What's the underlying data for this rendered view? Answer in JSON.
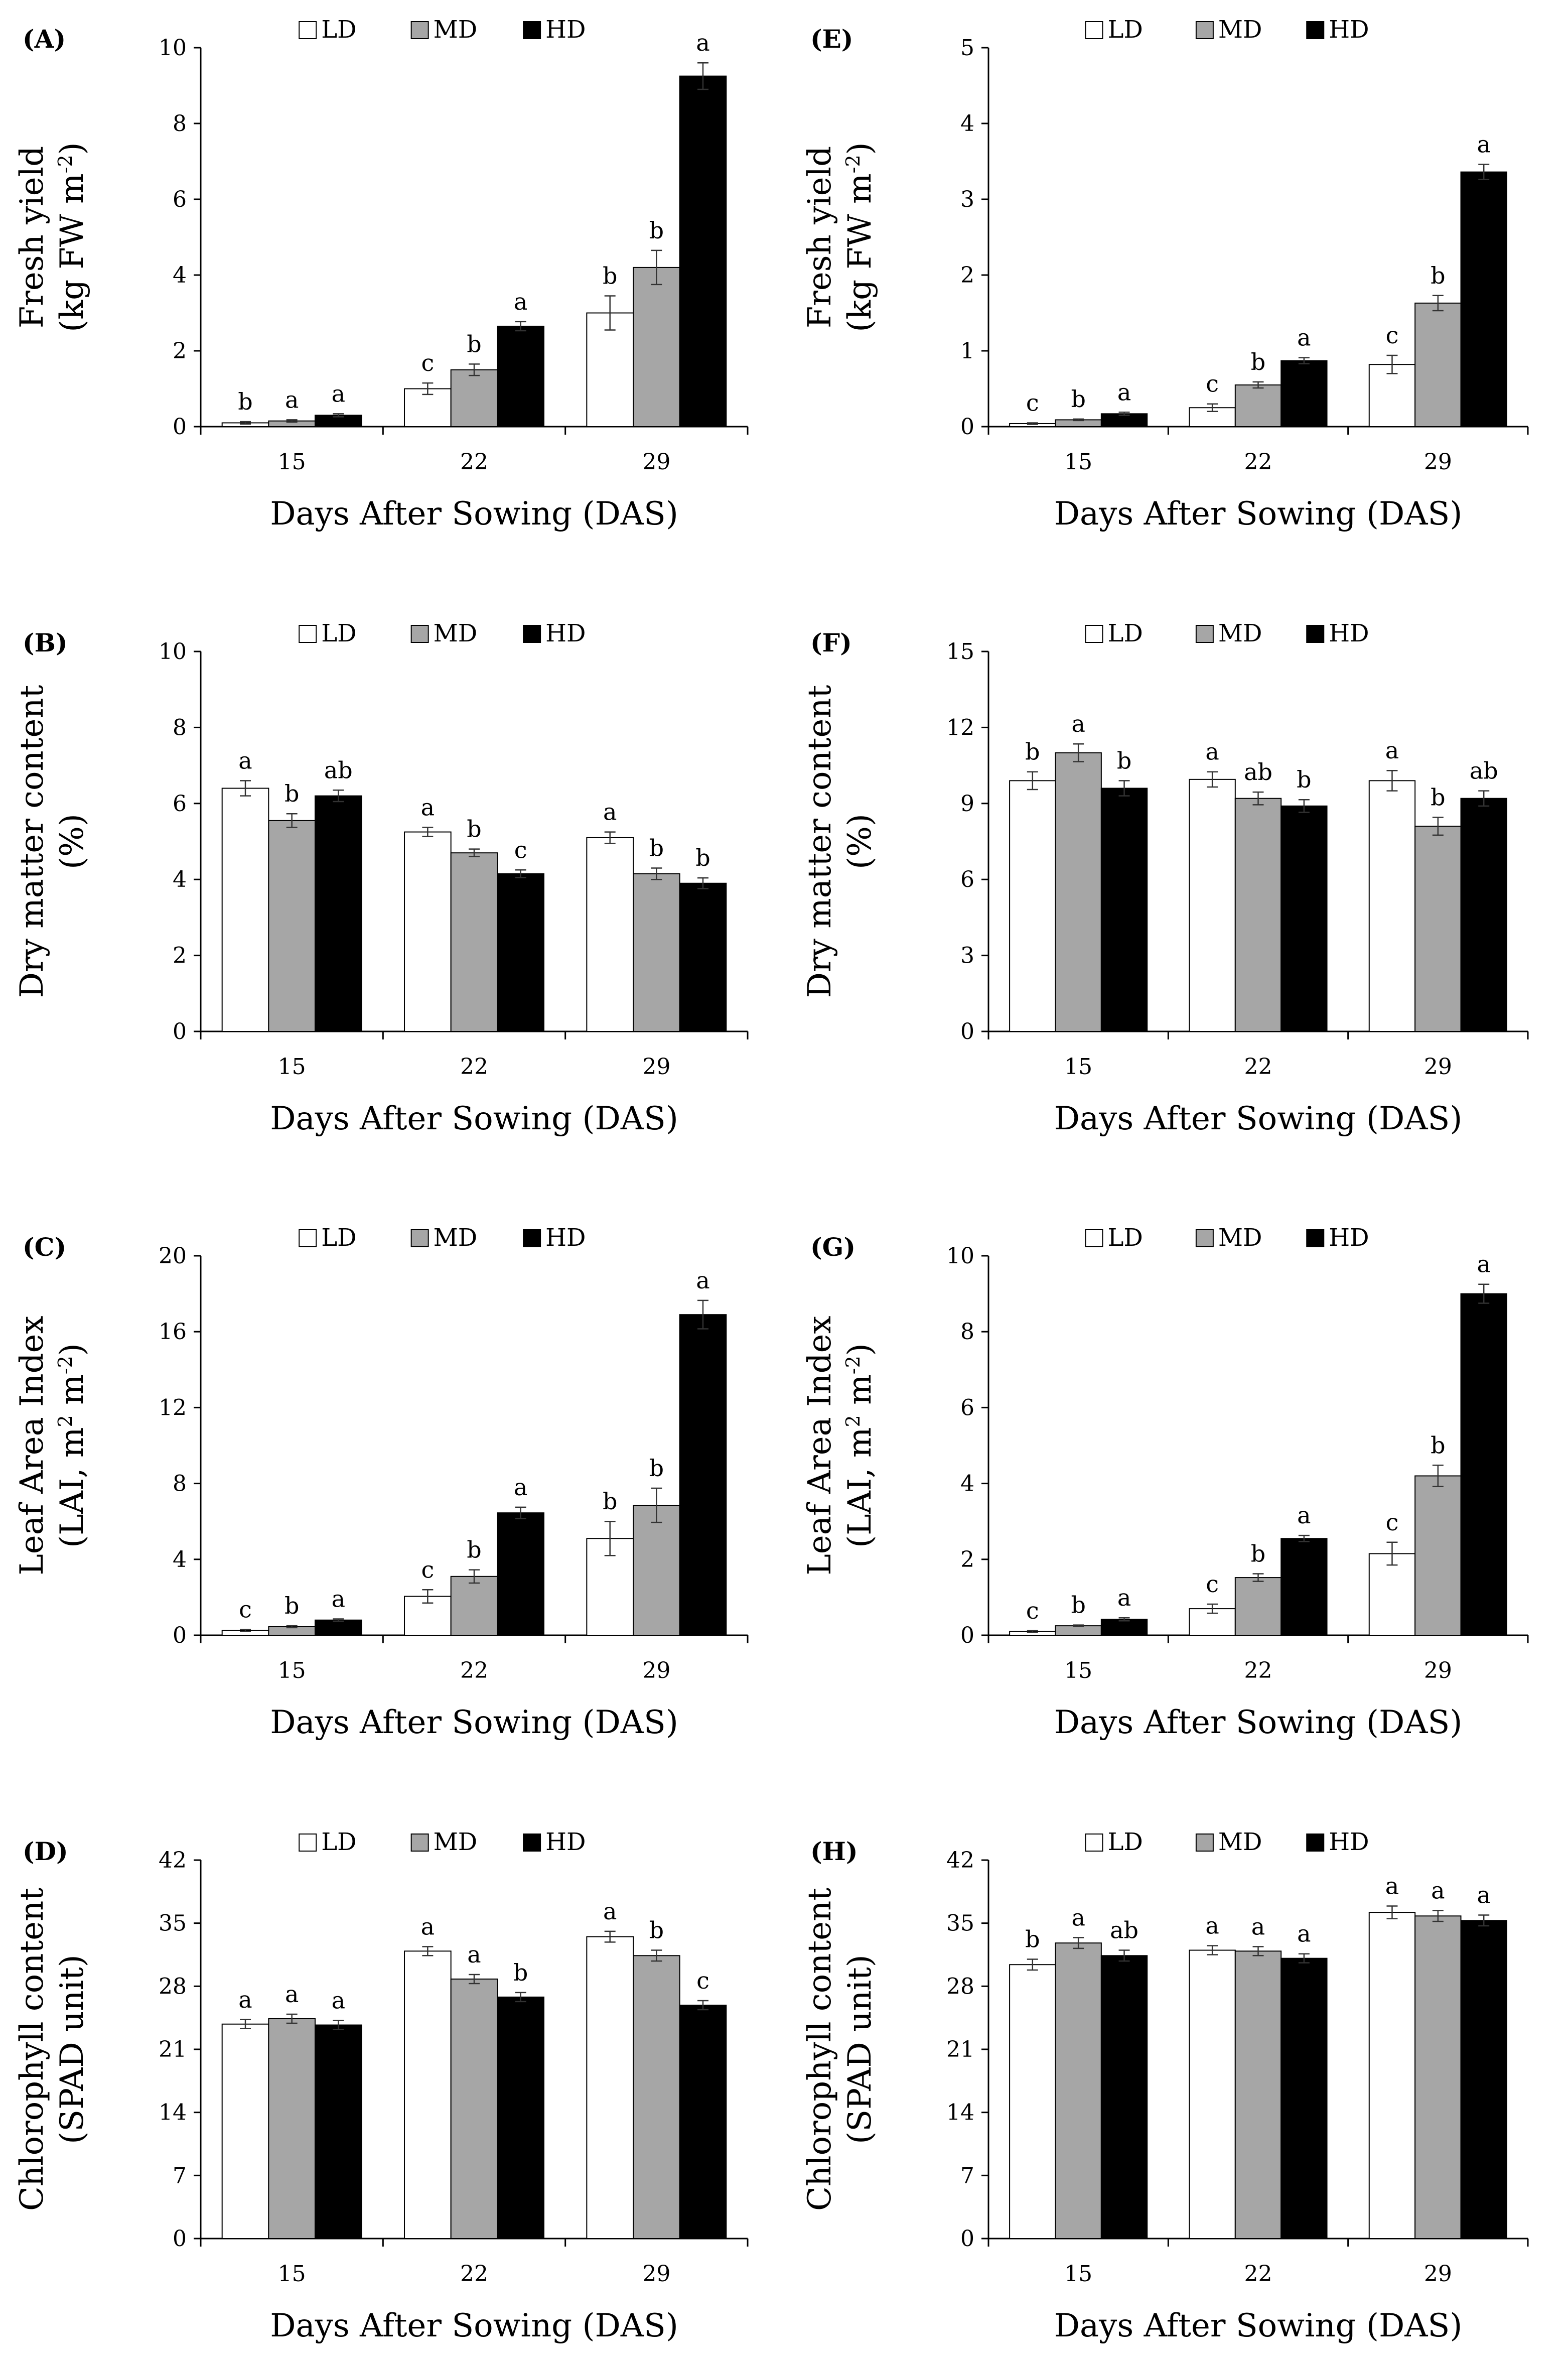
{
  "figure": {
    "legend_labels": [
      "LD",
      "MD",
      "HD"
    ],
    "xlabel": "Days After Sowing (DAS)",
    "categories": [
      "15",
      "22",
      "29"
    ],
    "series_colors": {
      "LD": "#ffffff",
      "MD": "#a6a6a6",
      "HD": "#000000"
    }
  },
  "chart_data": [
    {
      "panel": "(A)",
      "type": "bar",
      "title": "",
      "ylabel": [
        "Fresh yield",
        "(kg FW m-2)"
      ],
      "xlabel": "Days After Sowing (DAS)",
      "categories": [
        "15",
        "22",
        "29"
      ],
      "ylim": [
        0,
        10
      ],
      "yticks": [
        0,
        2,
        4,
        6,
        8,
        10
      ],
      "ytick_labels": [
        "0",
        "2",
        "4",
        "6",
        "8",
        "10"
      ],
      "series": [
        {
          "name": "LD",
          "values": [
            0.1,
            1.0,
            3.0
          ],
          "errors": [
            0.03,
            0.15,
            0.45
          ],
          "letters": [
            "b",
            "c",
            "b"
          ]
        },
        {
          "name": "MD",
          "values": [
            0.15,
            1.5,
            4.2
          ],
          "errors": [
            0.03,
            0.15,
            0.45
          ],
          "letters": [
            "a",
            "b",
            "b"
          ]
        },
        {
          "name": "HD",
          "values": [
            0.3,
            2.65,
            9.25
          ],
          "errors": [
            0.04,
            0.12,
            0.35
          ],
          "letters": [
            "a",
            "a",
            "a"
          ]
        }
      ]
    },
    {
      "panel": "(E)",
      "type": "bar",
      "title": "",
      "ylabel": [
        "Fresh yield",
        "(kg FW m-2)"
      ],
      "xlabel": "Days After Sowing (DAS)",
      "categories": [
        "15",
        "22",
        "29"
      ],
      "ylim": [
        0,
        5
      ],
      "yticks": [
        0,
        1,
        2,
        3,
        4,
        5
      ],
      "ytick_labels": [
        "0",
        "1",
        "2",
        "3",
        "4",
        "5"
      ],
      "series": [
        {
          "name": "LD",
          "values": [
            0.04,
            0.25,
            0.82
          ],
          "errors": [
            0.01,
            0.05,
            0.12
          ],
          "letters": [
            "c",
            "c",
            "c"
          ]
        },
        {
          "name": "MD",
          "values": [
            0.09,
            0.55,
            1.63
          ],
          "errors": [
            0.01,
            0.04,
            0.1
          ],
          "letters": [
            "b",
            "b",
            "b"
          ]
        },
        {
          "name": "HD",
          "values": [
            0.17,
            0.87,
            3.36
          ],
          "errors": [
            0.02,
            0.04,
            0.1
          ],
          "letters": [
            "a",
            "a",
            "a"
          ]
        }
      ]
    },
    {
      "panel": "(B)",
      "type": "bar",
      "title": "",
      "ylabel": [
        "Dry matter content",
        "(%)"
      ],
      "xlabel": "Days After Sowing (DAS)",
      "categories": [
        "15",
        "22",
        "29"
      ],
      "ylim": [
        0,
        10
      ],
      "yticks": [
        0,
        2,
        4,
        6,
        8,
        10
      ],
      "ytick_labels": [
        "0",
        "2",
        "4",
        "6",
        "8",
        "10"
      ],
      "series": [
        {
          "name": "LD",
          "values": [
            6.4,
            5.25,
            5.1
          ],
          "errors": [
            0.2,
            0.12,
            0.15
          ],
          "letters": [
            "a",
            "a",
            "a"
          ]
        },
        {
          "name": "MD",
          "values": [
            5.55,
            4.7,
            4.15
          ],
          "errors": [
            0.18,
            0.1,
            0.15
          ],
          "letters": [
            "b",
            "b",
            "b"
          ]
        },
        {
          "name": "HD",
          "values": [
            6.2,
            4.15,
            3.9
          ],
          "errors": [
            0.15,
            0.1,
            0.14
          ],
          "letters": [
            "ab",
            "c",
            "b"
          ]
        }
      ]
    },
    {
      "panel": "(F)",
      "type": "bar",
      "title": "",
      "ylabel": [
        "Dry matter content",
        "(%)"
      ],
      "xlabel": "Days After Sowing (DAS)",
      "categories": [
        "15",
        "22",
        "29"
      ],
      "ylim": [
        0,
        15
      ],
      "yticks": [
        0,
        3,
        6,
        9,
        12,
        15
      ],
      "ytick_labels": [
        "0",
        "3",
        "6",
        "9",
        "12",
        "15"
      ],
      "series": [
        {
          "name": "LD",
          "values": [
            9.9,
            9.95,
            9.9
          ],
          "errors": [
            0.35,
            0.3,
            0.4
          ],
          "letters": [
            "b",
            "a",
            "a"
          ]
        },
        {
          "name": "MD",
          "values": [
            11.0,
            9.2,
            8.1
          ],
          "errors": [
            0.35,
            0.25,
            0.35
          ],
          "letters": [
            "a",
            "ab",
            "b"
          ]
        },
        {
          "name": "HD",
          "values": [
            9.6,
            8.9,
            9.2
          ],
          "errors": [
            0.3,
            0.25,
            0.3
          ],
          "letters": [
            "b",
            "b",
            "ab"
          ]
        }
      ]
    },
    {
      "panel": "(C)",
      "type": "bar",
      "title": "",
      "ylabel": [
        "Leaf Area Index",
        "(LAI, m2 m-2)"
      ],
      "xlabel": "Days After Sowing (DAS)",
      "categories": [
        "15",
        "22",
        "29"
      ],
      "ylim": [
        0,
        20
      ],
      "yticks": [
        0,
        4,
        8,
        12,
        16,
        20
      ],
      "ytick_labels": [
        "0",
        "4",
        "8",
        "12",
        "16",
        "20"
      ],
      "series": [
        {
          "name": "LD",
          "values": [
            0.25,
            2.05,
            5.1
          ],
          "errors": [
            0.05,
            0.35,
            0.9
          ],
          "letters": [
            "c",
            "c",
            "b"
          ]
        },
        {
          "name": "MD",
          "values": [
            0.45,
            3.1,
            6.85
          ],
          "errors": [
            0.05,
            0.35,
            0.9
          ],
          "letters": [
            "b",
            "b",
            "b"
          ]
        },
        {
          "name": "HD",
          "values": [
            0.8,
            6.45,
            16.9
          ],
          "errors": [
            0.06,
            0.3,
            0.75
          ],
          "letters": [
            "a",
            "a",
            "a"
          ]
        }
      ]
    },
    {
      "panel": "(G)",
      "type": "bar",
      "title": "",
      "ylabel": [
        "Leaf Area Index",
        "(LAI, m2 m-2)"
      ],
      "xlabel": "Days After Sowing (DAS)",
      "categories": [
        "15",
        "22",
        "29"
      ],
      "ylim": [
        0,
        10
      ],
      "yticks": [
        0,
        2,
        4,
        6,
        8,
        10
      ],
      "ytick_labels": [
        "0",
        "2",
        "4",
        "6",
        "8",
        "10"
      ],
      "series": [
        {
          "name": "LD",
          "values": [
            0.1,
            0.7,
            2.15
          ],
          "errors": [
            0.02,
            0.12,
            0.3
          ],
          "letters": [
            "c",
            "c",
            "c"
          ]
        },
        {
          "name": "MD",
          "values": [
            0.25,
            1.52,
            4.2
          ],
          "errors": [
            0.02,
            0.1,
            0.28
          ],
          "letters": [
            "b",
            "b",
            "b"
          ]
        },
        {
          "name": "HD",
          "values": [
            0.42,
            2.55,
            9.0
          ],
          "errors": [
            0.04,
            0.08,
            0.25
          ],
          "letters": [
            "a",
            "a",
            "a"
          ]
        }
      ]
    },
    {
      "panel": "(D)",
      "type": "bar",
      "title": "",
      "ylabel": [
        "Chlorophyll content",
        "(SPAD unit)"
      ],
      "xlabel": "Days After Sowing (DAS)",
      "categories": [
        "15",
        "22",
        "29"
      ],
      "ylim": [
        0,
        42
      ],
      "yticks": [
        0,
        7,
        14,
        21,
        28,
        35,
        42
      ],
      "ytick_labels": [
        "0",
        "7",
        "14",
        "21",
        "28",
        "35",
        "42"
      ],
      "series": [
        {
          "name": "LD",
          "values": [
            23.8,
            31.9,
            33.5
          ],
          "errors": [
            0.5,
            0.5,
            0.6
          ],
          "letters": [
            "a",
            "a",
            "a"
          ]
        },
        {
          "name": "MD",
          "values": [
            24.4,
            28.8,
            31.4
          ],
          "errors": [
            0.5,
            0.5,
            0.6
          ],
          "letters": [
            "a",
            "a",
            "b"
          ]
        },
        {
          "name": "HD",
          "values": [
            23.7,
            26.8,
            25.9
          ],
          "errors": [
            0.5,
            0.5,
            0.5
          ],
          "letters": [
            "a",
            "b",
            "c"
          ]
        }
      ]
    },
    {
      "panel": "(H)",
      "type": "bar",
      "title": "",
      "ylabel": [
        "Chlorophyll content",
        "(SPAD unit)"
      ],
      "xlabel": "Days After Sowing (DAS)",
      "categories": [
        "15",
        "22",
        "29"
      ],
      "ylim": [
        0,
        42
      ],
      "yticks": [
        0,
        7,
        14,
        21,
        28,
        35,
        42
      ],
      "ytick_labels": [
        "0",
        "7",
        "14",
        "21",
        "28",
        "35",
        "42"
      ],
      "series": [
        {
          "name": "LD",
          "values": [
            30.4,
            32.0,
            36.2
          ],
          "errors": [
            0.6,
            0.5,
            0.7
          ],
          "letters": [
            "b",
            "a",
            "a"
          ]
        },
        {
          "name": "MD",
          "values": [
            32.8,
            31.9,
            35.8
          ],
          "errors": [
            0.6,
            0.5,
            0.6
          ],
          "letters": [
            "a",
            "a",
            "a"
          ]
        },
        {
          "name": "HD",
          "values": [
            31.4,
            31.1,
            35.3
          ],
          "errors": [
            0.6,
            0.5,
            0.6
          ],
          "letters": [
            "ab",
            "a",
            "a"
          ]
        }
      ]
    }
  ]
}
